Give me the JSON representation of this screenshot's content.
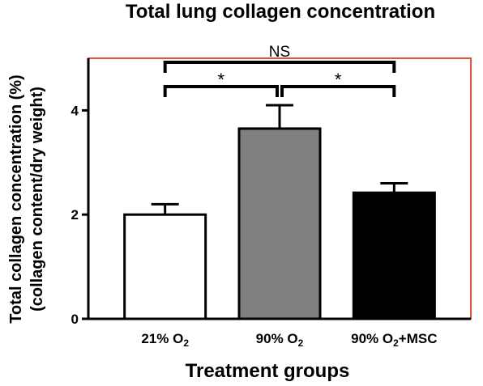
{
  "chart_data": {
    "type": "bar",
    "title": "Total lung collagen concentration",
    "ylabel_lines": [
      "Total collagen concentration (%)",
      "(collagen content/dry weight)"
    ],
    "xlabel": "Treatment groups",
    "categories": [
      {
        "main": "21% O",
        "sub": "2",
        "suffix": ""
      },
      {
        "main": "90% O",
        "sub": "2",
        "suffix": ""
      },
      {
        "main": "90% O",
        "sub": "2",
        "suffix": "+MSC"
      }
    ],
    "values": [
      2.0,
      3.65,
      2.42
    ],
    "errors": [
      0.2,
      0.45,
      0.18
    ],
    "bar_colors": [
      "#ffffff",
      "#808080",
      "#000000"
    ],
    "ylim": [
      0,
      5
    ],
    "yticks": [
      0,
      2,
      4
    ],
    "frame_color": "#d9573a",
    "grid": false,
    "comparisons": [
      {
        "from": 0,
        "to": 1,
        "label": "*",
        "tier": 1
      },
      {
        "from": 1,
        "to": 2,
        "label": "*",
        "tier": 1
      },
      {
        "from": 0,
        "to": 2,
        "label": "NS",
        "tier": 2
      }
    ]
  }
}
